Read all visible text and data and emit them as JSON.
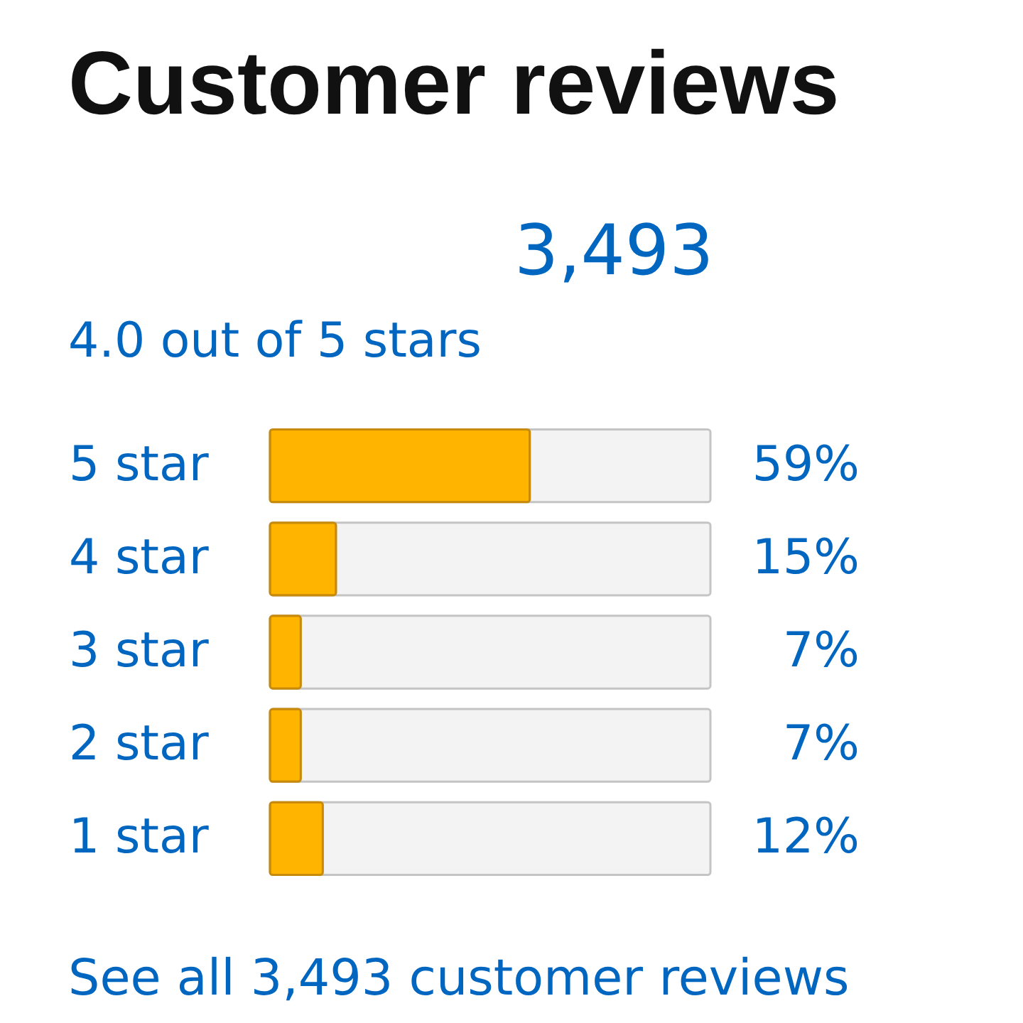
{
  "chart_data": {
    "type": "bar",
    "orientation": "horizontal",
    "title": "Customer reviews",
    "categories": [
      "5 star",
      "4 star",
      "3 star",
      "2 star",
      "1 star"
    ],
    "values": [
      59,
      15,
      7,
      7,
      12
    ],
    "color": "#ffb400",
    "value_labels": [
      "59%",
      "15%",
      "7%",
      "7%",
      "12%"
    ],
    "xlim": [
      0,
      100
    ],
    "tick_labels": "y",
    "annotations": [
      "3,493",
      "4.0 out of 5 stars",
      "See all 3,493 customer reviews"
    ]
  }
}
